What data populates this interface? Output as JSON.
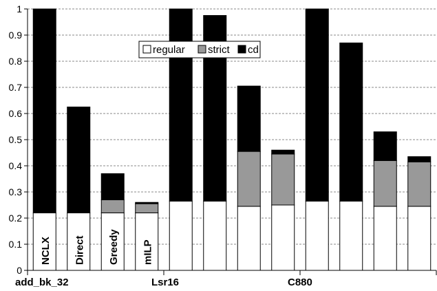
{
  "chart_data": {
    "type": "bar",
    "stacked": true,
    "ylim": [
      0,
      1
    ],
    "yticks": [
      0,
      0.1,
      0.2,
      0.3,
      0.4,
      0.5,
      0.6,
      0.7,
      0.8,
      0.9,
      1
    ],
    "grid": true,
    "legend_position": "top-center",
    "groups": [
      "add_bk_32",
      "Lsr16",
      "C880"
    ],
    "methods": [
      "NCLX",
      "Direct",
      "Greedy",
      "mILP"
    ],
    "series": [
      {
        "name": "regular",
        "color": "#ffffff",
        "values": [
          0.22,
          0.22,
          0.22,
          0.22,
          0.265,
          0.265,
          0.245,
          0.25,
          0.265,
          0.265,
          0.245,
          0.245
        ]
      },
      {
        "name": "strict",
        "color": "#999999",
        "values": [
          0,
          0,
          0.05,
          0.035,
          0,
          0,
          0.21,
          0.195,
          0,
          0,
          0.175,
          0.17
        ]
      },
      {
        "name": "cd",
        "color": "#000000",
        "values": [
          0.78,
          0.405,
          0.1,
          0.005,
          0.735,
          0.71,
          0.25,
          0.015,
          0.735,
          0.605,
          0.11,
          0.02
        ]
      }
    ]
  },
  "colors": {
    "regular": "#ffffff",
    "strict": "#999999",
    "cd": "#000000",
    "grid": "#888888"
  }
}
